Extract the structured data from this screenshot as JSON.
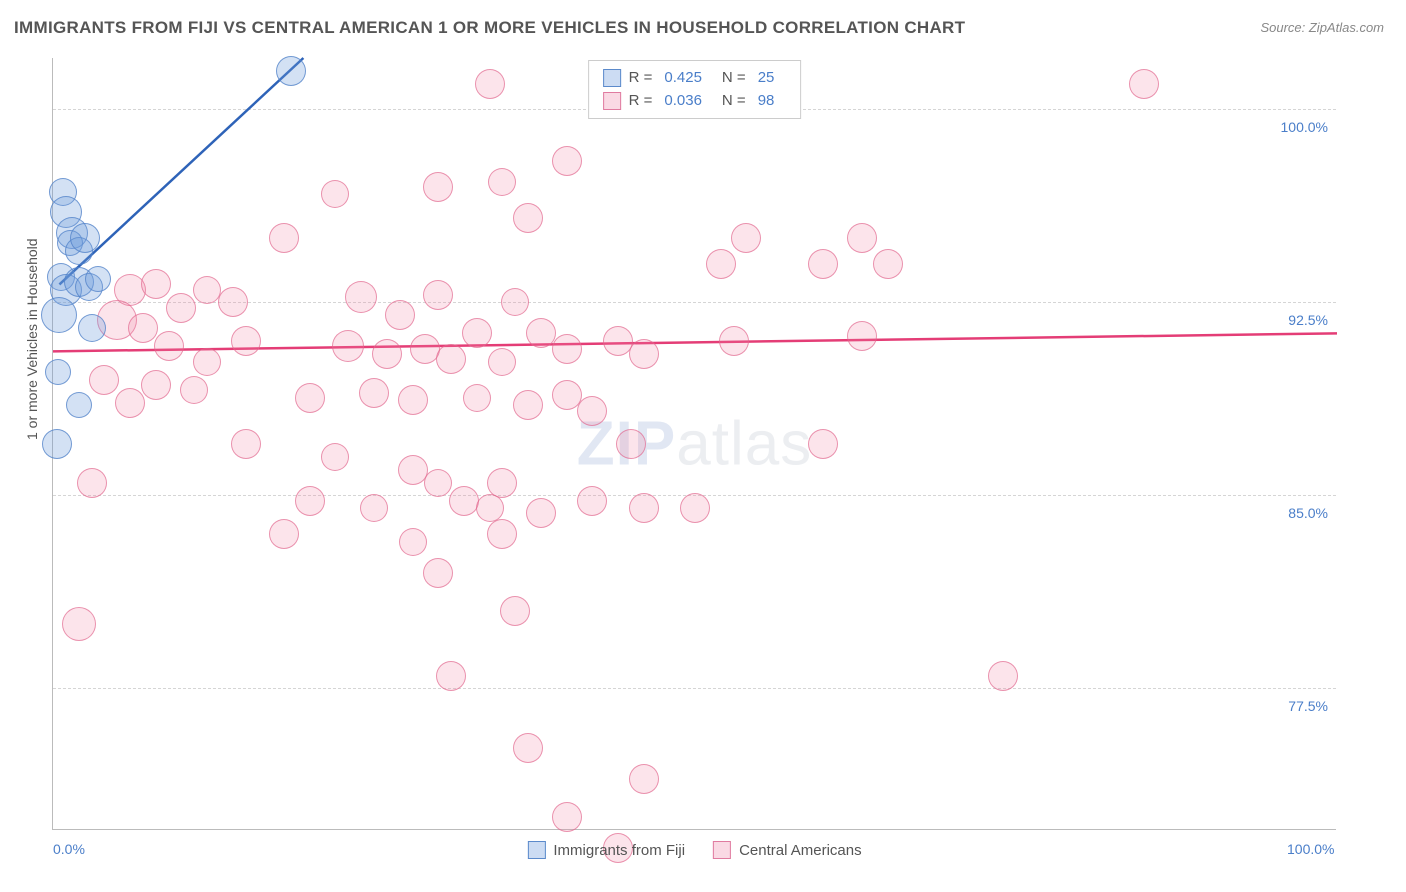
{
  "title": "IMMIGRANTS FROM FIJI VS CENTRAL AMERICAN 1 OR MORE VEHICLES IN HOUSEHOLD CORRELATION CHART",
  "source": "Source: ZipAtlas.com",
  "watermark_zip": "ZIP",
  "watermark_atlas": "atlas",
  "y_axis_title": "1 or more Vehicles in Household",
  "chart": {
    "type": "scatter",
    "xlim": [
      0,
      100
    ],
    "ylim": [
      72,
      102
    ],
    "x_ticks": [
      {
        "v": 0,
        "label": "0.0%"
      },
      {
        "v": 100,
        "label": "100.0%"
      }
    ],
    "y_ticks": [
      {
        "v": 77.5,
        "label": "77.5%"
      },
      {
        "v": 85.0,
        "label": "85.0%"
      },
      {
        "v": 92.5,
        "label": "92.5%"
      },
      {
        "v": 100.0,
        "label": "100.0%"
      }
    ],
    "grid_color": "#d5d5d5",
    "background_color": "#ffffff",
    "axis_label_color": "#4a7ec9",
    "tick_fontsize": 14,
    "title_fontsize": 17,
    "series": [
      {
        "id": "a",
        "name": "Immigrants from Fiji",
        "color_fill": "rgba(110,155,220,0.30)",
        "color_stroke": "#5b8acb",
        "R": "0.425",
        "N": "25",
        "trend": {
          "x1": 0.5,
          "y1": 93.2,
          "x2": 19.5,
          "y2": 102.0,
          "color": "#2e63b8",
          "width": 2.5
        },
        "points": [
          {
            "x": 0.8,
            "y": 96.8,
            "r": 14
          },
          {
            "x": 1.0,
            "y": 96.0,
            "r": 16
          },
          {
            "x": 1.5,
            "y": 95.2,
            "r": 16
          },
          {
            "x": 1.3,
            "y": 94.8,
            "r": 13
          },
          {
            "x": 2.0,
            "y": 94.5,
            "r": 14
          },
          {
            "x": 2.5,
            "y": 95.0,
            "r": 15
          },
          {
            "x": 0.6,
            "y": 93.5,
            "r": 14
          },
          {
            "x": 1.0,
            "y": 93.0,
            "r": 16
          },
          {
            "x": 2.0,
            "y": 93.3,
            "r": 15
          },
          {
            "x": 2.8,
            "y": 93.1,
            "r": 14
          },
          {
            "x": 3.5,
            "y": 93.4,
            "r": 13
          },
          {
            "x": 0.5,
            "y": 92.0,
            "r": 18
          },
          {
            "x": 3.0,
            "y": 91.5,
            "r": 14
          },
          {
            "x": 0.4,
            "y": 89.8,
            "r": 13
          },
          {
            "x": 2.0,
            "y": 88.5,
            "r": 13
          },
          {
            "x": 0.3,
            "y": 87.0,
            "r": 15
          },
          {
            "x": 18.5,
            "y": 101.5,
            "r": 15
          }
        ]
      },
      {
        "id": "b",
        "name": "Central Americans",
        "color_fill": "rgba(240,130,165,0.22)",
        "color_stroke": "#e07ba0",
        "R": "0.036",
        "N": "98",
        "trend": {
          "x1": 0,
          "y1": 90.6,
          "x2": 100,
          "y2": 91.3,
          "color": "#e43d76",
          "width": 2.5
        },
        "points": [
          {
            "x": 34,
            "y": 101,
            "r": 15
          },
          {
            "x": 45,
            "y": 101,
            "r": 17
          },
          {
            "x": 46.5,
            "y": 101,
            "r": 14
          },
          {
            "x": 49,
            "y": 101,
            "r": 15
          },
          {
            "x": 55,
            "y": 101,
            "r": 14
          },
          {
            "x": 57,
            "y": 101,
            "r": 16
          },
          {
            "x": 85,
            "y": 101,
            "r": 15
          },
          {
            "x": 30,
            "y": 97.0,
            "r": 15
          },
          {
            "x": 35,
            "y": 97.2,
            "r": 14
          },
          {
            "x": 40,
            "y": 98.0,
            "r": 15
          },
          {
            "x": 18,
            "y": 95.0,
            "r": 15
          },
          {
            "x": 22,
            "y": 96.7,
            "r": 14
          },
          {
            "x": 37,
            "y": 95.8,
            "r": 15
          },
          {
            "x": 54,
            "y": 95.0,
            "r": 15
          },
          {
            "x": 63,
            "y": 95.0,
            "r": 15
          },
          {
            "x": 6,
            "y": 93.0,
            "r": 16
          },
          {
            "x": 8,
            "y": 93.2,
            "r": 15
          },
          {
            "x": 10,
            "y": 92.3,
            "r": 15
          },
          {
            "x": 12,
            "y": 93.0,
            "r": 14
          },
          {
            "x": 14,
            "y": 92.5,
            "r": 15
          },
          {
            "x": 24,
            "y": 92.7,
            "r": 16
          },
          {
            "x": 27,
            "y": 92.0,
            "r": 15
          },
          {
            "x": 30,
            "y": 92.8,
            "r": 15
          },
          {
            "x": 33,
            "y": 91.3,
            "r": 15
          },
          {
            "x": 36,
            "y": 92.5,
            "r": 14
          },
          {
            "x": 52,
            "y": 94.0,
            "r": 15
          },
          {
            "x": 60,
            "y": 94.0,
            "r": 15
          },
          {
            "x": 65,
            "y": 94.0,
            "r": 15
          },
          {
            "x": 5,
            "y": 91.8,
            "r": 20
          },
          {
            "x": 7,
            "y": 91.5,
            "r": 15
          },
          {
            "x": 9,
            "y": 90.8,
            "r": 15
          },
          {
            "x": 12,
            "y": 90.2,
            "r": 14
          },
          {
            "x": 15,
            "y": 91.0,
            "r": 15
          },
          {
            "x": 23,
            "y": 90.8,
            "r": 16
          },
          {
            "x": 26,
            "y": 90.5,
            "r": 15
          },
          {
            "x": 29,
            "y": 90.7,
            "r": 15
          },
          {
            "x": 31,
            "y": 90.3,
            "r": 15
          },
          {
            "x": 35,
            "y": 90.2,
            "r": 14
          },
          {
            "x": 38,
            "y": 91.3,
            "r": 15
          },
          {
            "x": 40,
            "y": 90.7,
            "r": 15
          },
          {
            "x": 44,
            "y": 91.0,
            "r": 15
          },
          {
            "x": 46,
            "y": 90.5,
            "r": 15
          },
          {
            "x": 53,
            "y": 91.0,
            "r": 15
          },
          {
            "x": 63,
            "y": 91.2,
            "r": 15
          },
          {
            "x": 4,
            "y": 89.5,
            "r": 15
          },
          {
            "x": 8,
            "y": 89.3,
            "r": 15
          },
          {
            "x": 11,
            "y": 89.1,
            "r": 14
          },
          {
            "x": 6,
            "y": 88.6,
            "r": 15
          },
          {
            "x": 20,
            "y": 88.8,
            "r": 15
          },
          {
            "x": 25,
            "y": 89.0,
            "r": 15
          },
          {
            "x": 28,
            "y": 88.7,
            "r": 15
          },
          {
            "x": 33,
            "y": 88.8,
            "r": 14
          },
          {
            "x": 37,
            "y": 88.5,
            "r": 15
          },
          {
            "x": 40,
            "y": 88.9,
            "r": 15
          },
          {
            "x": 42,
            "y": 88.3,
            "r": 15
          },
          {
            "x": 15,
            "y": 87.0,
            "r": 15
          },
          {
            "x": 22,
            "y": 86.5,
            "r": 14
          },
          {
            "x": 28,
            "y": 86.0,
            "r": 15
          },
          {
            "x": 30,
            "y": 85.5,
            "r": 14
          },
          {
            "x": 35,
            "y": 85.5,
            "r": 15
          },
          {
            "x": 45,
            "y": 87.0,
            "r": 15
          },
          {
            "x": 60,
            "y": 87.0,
            "r": 15
          },
          {
            "x": 3,
            "y": 85.5,
            "r": 15
          },
          {
            "x": 20,
            "y": 84.8,
            "r": 15
          },
          {
            "x": 25,
            "y": 84.5,
            "r": 14
          },
          {
            "x": 32,
            "y": 84.8,
            "r": 15
          },
          {
            "x": 34,
            "y": 84.5,
            "r": 14
          },
          {
            "x": 38,
            "y": 84.3,
            "r": 15
          },
          {
            "x": 42,
            "y": 84.8,
            "r": 15
          },
          {
            "x": 46,
            "y": 84.5,
            "r": 15
          },
          {
            "x": 50,
            "y": 84.5,
            "r": 15
          },
          {
            "x": 18,
            "y": 83.5,
            "r": 15
          },
          {
            "x": 28,
            "y": 83.2,
            "r": 14
          },
          {
            "x": 35,
            "y": 83.5,
            "r": 15
          },
          {
            "x": 2,
            "y": 80.0,
            "r": 17
          },
          {
            "x": 30,
            "y": 82.0,
            "r": 15
          },
          {
            "x": 36,
            "y": 80.5,
            "r": 15
          },
          {
            "x": 31,
            "y": 78.0,
            "r": 15
          },
          {
            "x": 74,
            "y": 78.0,
            "r": 15
          },
          {
            "x": 37,
            "y": 75.2,
            "r": 15
          },
          {
            "x": 46,
            "y": 74.0,
            "r": 15
          },
          {
            "x": 40,
            "y": 72.5,
            "r": 15
          },
          {
            "x": 44,
            "y": 71.3,
            "r": 15
          }
        ]
      }
    ]
  }
}
